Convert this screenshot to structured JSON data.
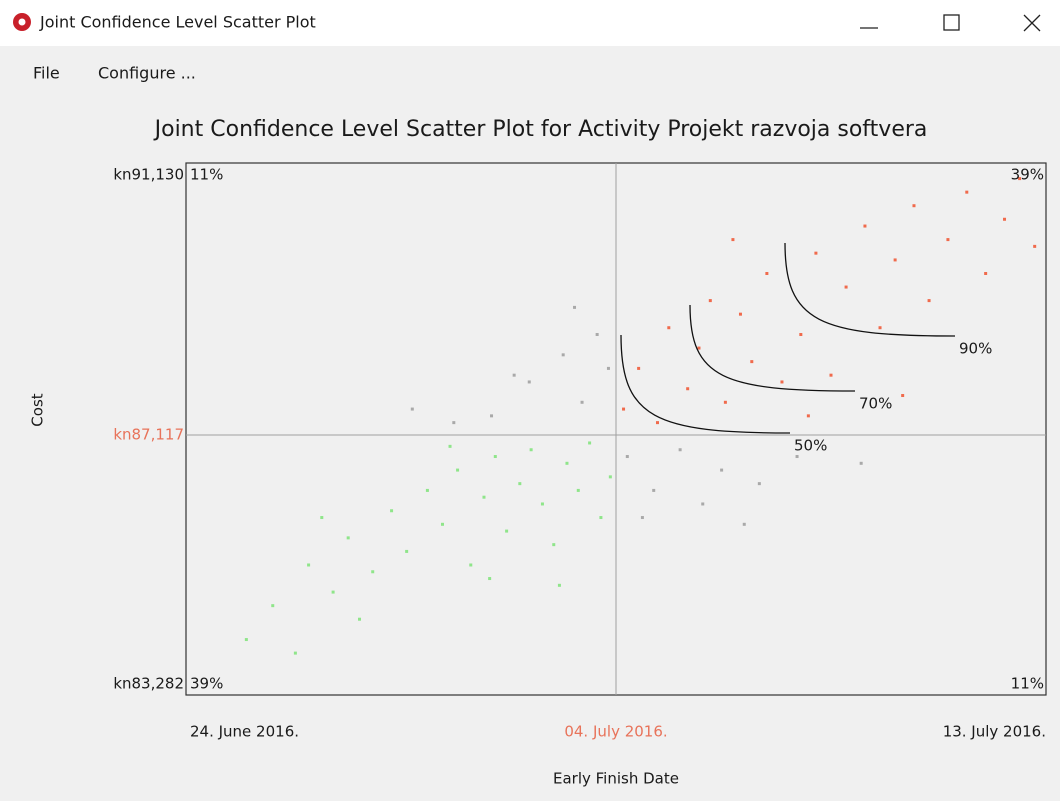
{
  "window": {
    "title": "Joint Confidence Level Scatter Plot",
    "menu": [
      "File",
      "Configure ..."
    ]
  },
  "chart_data": {
    "type": "scatter",
    "title": "Joint Confidence Level Scatter Plot for Activity Projekt razvoja softvera",
    "x_label": "Early Finish Date",
    "y_label": "Cost",
    "xlim": [
      "2016-06-24T12:00",
      "2016-07-13T12:00"
    ],
    "xticks": [
      {
        "value": "2016-06-24T12:00",
        "label": "24. June 2016."
      },
      {
        "value": "2016-07-04T00:00",
        "label": "04. July 2016."
      },
      {
        "value": "2016-07-13T12:00",
        "label": "13. July 2016."
      }
    ],
    "ylim": [
      83282,
      91130
    ],
    "yticks": [
      {
        "value": 91130,
        "label": "kn91,130"
      },
      {
        "value": 87117,
        "label": "kn87,117"
      },
      {
        "value": 83282,
        "label": "kn83,282"
      }
    ],
    "quadrant_labels": [
      {
        "value": 11,
        "label": "11%"
      },
      {
        "value": 39,
        "label": "39%"
      },
      {
        "value": 39,
        "label": "39%"
      },
      {
        "value": 11,
        "label": "11%"
      }
    ],
    "contours": [
      {
        "value": 50,
        "label": "50%"
      },
      {
        "value": 70,
        "label": "70%"
      },
      {
        "value": 90,
        "label": "90%"
      }
    ],
    "series": [
      {
        "color": "#8fe58a",
        "x": [
          "2016-06-25T20:00",
          "2016-06-26T10:00",
          "2016-06-27T05:00",
          "2016-06-27T18:00",
          "2016-06-28T02:00",
          "2016-06-28T15:00",
          "2016-06-29T01:00",
          "2016-06-29T09:00",
          "2016-06-29T20:00",
          "2016-06-30T04:00",
          "2016-06-30T12:00",
          "2016-06-30T19:00",
          "2016-07-01T02:00",
          "2016-07-01T08:00",
          "2016-07-01T14:00",
          "2016-07-01T21:00",
          "2016-07-02T03:00",
          "2016-07-02T09:00",
          "2016-07-02T15:00",
          "2016-07-02T22:00",
          "2016-07-03T04:00",
          "2016-07-03T10:00",
          "2016-07-03T16:00",
          "2016-07-03T21:00",
          "2016-06-26T22:00",
          "2016-06-28T08:00",
          "2016-07-01T05:00",
          "2016-06-30T08:00",
          "2016-06-27T12:00",
          "2016-07-02T18:00"
        ],
        "values": [
          84100,
          84600,
          85200,
          84800,
          85600,
          85100,
          86000,
          85400,
          86300,
          85800,
          86600,
          85200,
          86200,
          86800,
          85700,
          86400,
          86900,
          86100,
          85500,
          86700,
          86300,
          87000,
          85900,
          86500,
          83900,
          84400,
          85000,
          86950,
          85900,
          84900
        ]
      },
      {
        "color": "#a9a9a9",
        "x": [
          "2016-07-01T06:00",
          "2016-07-02T02:00",
          "2016-07-02T20:00",
          "2016-07-03T06:00",
          "2016-07-03T14:00",
          "2016-07-03T20:00",
          "2016-06-30T10:00",
          "2016-07-01T18:00",
          "2016-07-03T02:00",
          "2016-06-29T12:00",
          "2016-07-04T06:00",
          "2016-07-04T20:00",
          "2016-07-05T10:00",
          "2016-07-05T22:00",
          "2016-07-06T08:00",
          "2016-07-07T04:00",
          "2016-07-08T00:00",
          "2016-07-06T20:00",
          "2016-07-04T14:00",
          "2016-07-09T10:00"
        ],
        "values": [
          87400,
          87900,
          88300,
          87600,
          88600,
          88100,
          87300,
          88000,
          89000,
          87500,
          86800,
          86300,
          86900,
          86100,
          86600,
          86400,
          86800,
          85800,
          85900,
          86700
        ]
      },
      {
        "color": "#f06a4c",
        "x": [
          "2016-07-04T04:00",
          "2016-07-04T12:00",
          "2016-07-04T22:00",
          "2016-07-05T04:00",
          "2016-07-05T14:00",
          "2016-07-05T20:00",
          "2016-07-06T02:00",
          "2016-07-06T10:00",
          "2016-07-06T18:00",
          "2016-07-07T00:00",
          "2016-07-07T08:00",
          "2016-07-07T16:00",
          "2016-07-08T02:00",
          "2016-07-08T10:00",
          "2016-07-08T18:00",
          "2016-07-09T02:00",
          "2016-07-09T12:00",
          "2016-07-09T20:00",
          "2016-07-10T04:00",
          "2016-07-10T14:00",
          "2016-07-10T22:00",
          "2016-07-11T08:00",
          "2016-07-11T18:00",
          "2016-07-12T04:00",
          "2016-07-12T14:00",
          "2016-07-12T22:00",
          "2016-07-13T06:00",
          "2016-07-06T14:00",
          "2016-07-08T06:00",
          "2016-07-10T08:00"
        ],
        "values": [
          87500,
          88100,
          87300,
          88700,
          87800,
          88400,
          89100,
          87600,
          88900,
          88200,
          89500,
          87900,
          88600,
          89800,
          88000,
          89300,
          90200,
          88700,
          89700,
          90500,
          89100,
          90000,
          90700,
          89500,
          90300,
          90900,
          89900,
          90000,
          87400,
          87700
        ]
      }
    ]
  }
}
